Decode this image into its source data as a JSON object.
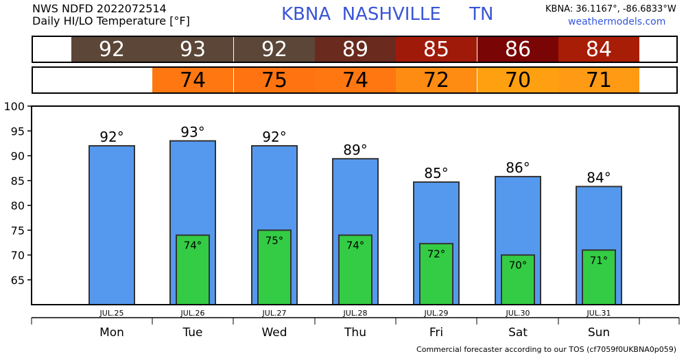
{
  "header": {
    "line1": "NWS NDFD 2022072514",
    "line2": "Daily HI/LO Temperature [°F]",
    "location": "KBNA  NASHVILLE     TN",
    "coords": "KBNA: 36.1167°, -86.6833°W",
    "site": "weathermodels.com"
  },
  "footer": "Commercial forecaster according to our TOS (cf7059f0UKBNA0p059)",
  "colors": {
    "hi_bar": "#5599ee",
    "lo_bar": "#33cc44",
    "hi_cells": [
      "#5b4638",
      "#5b4638",
      "#5b4638",
      "#6a2a1e",
      "#a01a0a",
      "#7a0505",
      "#a81d06"
    ],
    "lo_cells": [
      "#ff7710",
      "#ff7310",
      "#ff7710",
      "#ff8c12",
      "#ffa010",
      "#ff9a14"
    ]
  },
  "hi_strip": [
    "92",
    "93",
    "92",
    "89",
    "85",
    "86",
    "84"
  ],
  "lo_strip": [
    "74",
    "75",
    "74",
    "72",
    "70",
    "71"
  ],
  "chart_data": {
    "type": "bar",
    "categories": [
      "Mon",
      "Tue",
      "Wed",
      "Thu",
      "Fri",
      "Sat",
      "Sun"
    ],
    "dates": [
      "JUL.25",
      "JUL.26",
      "JUL.27",
      "JUL.28",
      "JUL.29",
      "JUL.30",
      "JUL.31"
    ],
    "series": [
      {
        "values": [
          92,
          93,
          92,
          89.4,
          84.7,
          85.8,
          83.8
        ],
        "labels": [
          "92°",
          "93°",
          "92°",
          "89°",
          "85°",
          "86°",
          "84°"
        ]
      },
      {
        "values": [
          null,
          74,
          75,
          74,
          72.3,
          70,
          71
        ],
        "labels": [
          "",
          "74°",
          "75°",
          "74°",
          "72°",
          "70°",
          "71°"
        ]
      }
    ],
    "ylim": [
      60,
      100
    ],
    "yticks": [
      65,
      70,
      75,
      80,
      85,
      90,
      95,
      100
    ],
    "grid": false
  }
}
